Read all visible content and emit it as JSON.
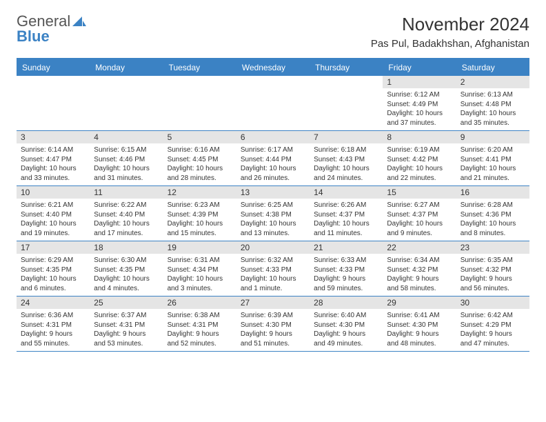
{
  "logo": {
    "text_gray": "General",
    "text_blue": "Blue",
    "sail_color": "#3b82c4"
  },
  "title": "November 2024",
  "location": "Pas Pul, Badakhshan, Afghanistan",
  "colors": {
    "header_bg": "#3b82c4",
    "row_band": "#e5e5e5",
    "text": "#333333",
    "border": "#3b82c4"
  },
  "day_names": [
    "Sunday",
    "Monday",
    "Tuesday",
    "Wednesday",
    "Thursday",
    "Friday",
    "Saturday"
  ],
  "grid": {
    "first_weekday_index": 5,
    "days_in_month": 30
  },
  "days": {
    "1": {
      "sunrise": "6:12 AM",
      "sunset": "4:49 PM",
      "daylight": "10 hours and 37 minutes."
    },
    "2": {
      "sunrise": "6:13 AM",
      "sunset": "4:48 PM",
      "daylight": "10 hours and 35 minutes."
    },
    "3": {
      "sunrise": "6:14 AM",
      "sunset": "4:47 PM",
      "daylight": "10 hours and 33 minutes."
    },
    "4": {
      "sunrise": "6:15 AM",
      "sunset": "4:46 PM",
      "daylight": "10 hours and 31 minutes."
    },
    "5": {
      "sunrise": "6:16 AM",
      "sunset": "4:45 PM",
      "daylight": "10 hours and 28 minutes."
    },
    "6": {
      "sunrise": "6:17 AM",
      "sunset": "4:44 PM",
      "daylight": "10 hours and 26 minutes."
    },
    "7": {
      "sunrise": "6:18 AM",
      "sunset": "4:43 PM",
      "daylight": "10 hours and 24 minutes."
    },
    "8": {
      "sunrise": "6:19 AM",
      "sunset": "4:42 PM",
      "daylight": "10 hours and 22 minutes."
    },
    "9": {
      "sunrise": "6:20 AM",
      "sunset": "4:41 PM",
      "daylight": "10 hours and 21 minutes."
    },
    "10": {
      "sunrise": "6:21 AM",
      "sunset": "4:40 PM",
      "daylight": "10 hours and 19 minutes."
    },
    "11": {
      "sunrise": "6:22 AM",
      "sunset": "4:40 PM",
      "daylight": "10 hours and 17 minutes."
    },
    "12": {
      "sunrise": "6:23 AM",
      "sunset": "4:39 PM",
      "daylight": "10 hours and 15 minutes."
    },
    "13": {
      "sunrise": "6:25 AM",
      "sunset": "4:38 PM",
      "daylight": "10 hours and 13 minutes."
    },
    "14": {
      "sunrise": "6:26 AM",
      "sunset": "4:37 PM",
      "daylight": "10 hours and 11 minutes."
    },
    "15": {
      "sunrise": "6:27 AM",
      "sunset": "4:37 PM",
      "daylight": "10 hours and 9 minutes."
    },
    "16": {
      "sunrise": "6:28 AM",
      "sunset": "4:36 PM",
      "daylight": "10 hours and 8 minutes."
    },
    "17": {
      "sunrise": "6:29 AM",
      "sunset": "4:35 PM",
      "daylight": "10 hours and 6 minutes."
    },
    "18": {
      "sunrise": "6:30 AM",
      "sunset": "4:35 PM",
      "daylight": "10 hours and 4 minutes."
    },
    "19": {
      "sunrise": "6:31 AM",
      "sunset": "4:34 PM",
      "daylight": "10 hours and 3 minutes."
    },
    "20": {
      "sunrise": "6:32 AM",
      "sunset": "4:33 PM",
      "daylight": "10 hours and 1 minute."
    },
    "21": {
      "sunrise": "6:33 AM",
      "sunset": "4:33 PM",
      "daylight": "9 hours and 59 minutes."
    },
    "22": {
      "sunrise": "6:34 AM",
      "sunset": "4:32 PM",
      "daylight": "9 hours and 58 minutes."
    },
    "23": {
      "sunrise": "6:35 AM",
      "sunset": "4:32 PM",
      "daylight": "9 hours and 56 minutes."
    },
    "24": {
      "sunrise": "6:36 AM",
      "sunset": "4:31 PM",
      "daylight": "9 hours and 55 minutes."
    },
    "25": {
      "sunrise": "6:37 AM",
      "sunset": "4:31 PM",
      "daylight": "9 hours and 53 minutes."
    },
    "26": {
      "sunrise": "6:38 AM",
      "sunset": "4:31 PM",
      "daylight": "9 hours and 52 minutes."
    },
    "27": {
      "sunrise": "6:39 AM",
      "sunset": "4:30 PM",
      "daylight": "9 hours and 51 minutes."
    },
    "28": {
      "sunrise": "6:40 AM",
      "sunset": "4:30 PM",
      "daylight": "9 hours and 49 minutes."
    },
    "29": {
      "sunrise": "6:41 AM",
      "sunset": "4:30 PM",
      "daylight": "9 hours and 48 minutes."
    },
    "30": {
      "sunrise": "6:42 AM",
      "sunset": "4:29 PM",
      "daylight": "9 hours and 47 minutes."
    }
  },
  "labels": {
    "sunrise": "Sunrise:",
    "sunset": "Sunset:",
    "daylight": "Daylight:"
  }
}
